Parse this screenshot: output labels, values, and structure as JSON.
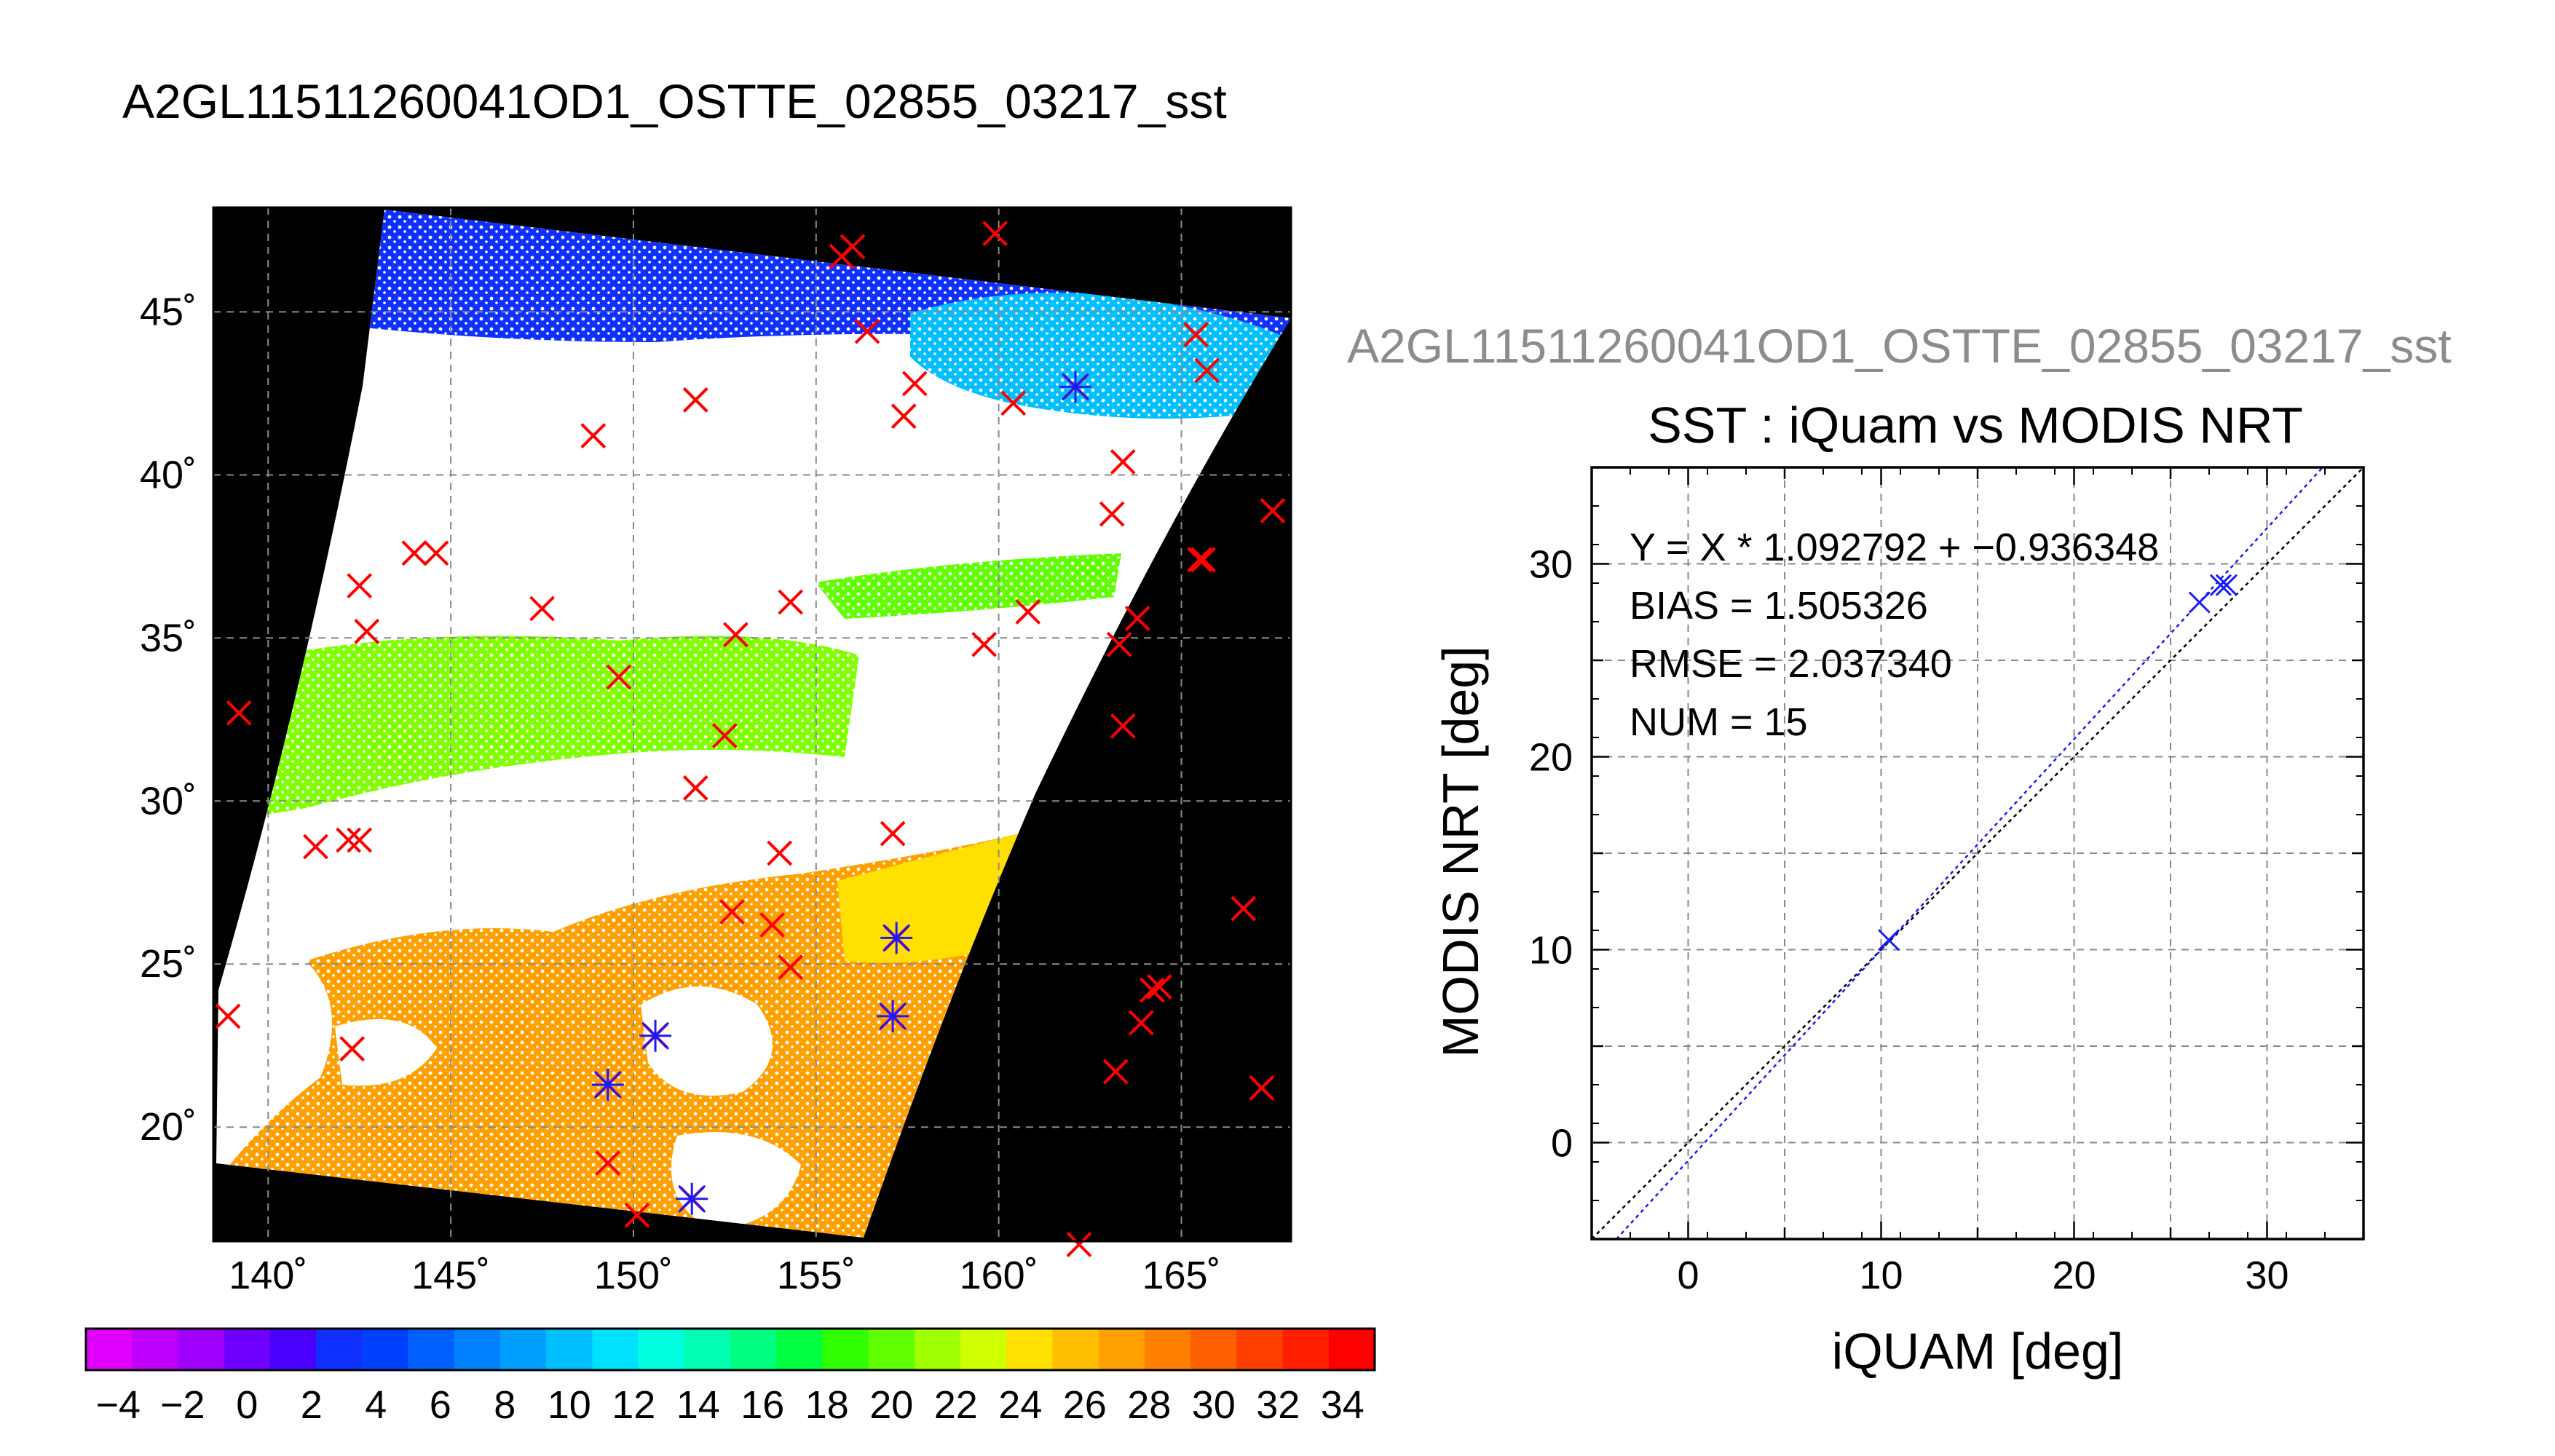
{
  "figure": {
    "title": "A2GL11511260041OD1_OSTTE_02855_03217_sst",
    "right_title": "A2GL11511260041OD1_OSTTE_02855_03217_sst"
  },
  "colors": {
    "background": "#ffffff",
    "map_background": "#000000",
    "cloud": "#ffffff",
    "match_marker": "#ff0000",
    "matched_marker": "#1a1aff",
    "fit_line": "#1a1aff",
    "identity_line": "#000000",
    "right_title": "#8c8c8c"
  },
  "chart_data": [
    {
      "type": "scatter",
      "name": "map",
      "xlim": [
        138.5,
        168
      ],
      "ylim": [
        16.5,
        48.2
      ],
      "x_ticks": [
        140,
        145,
        150,
        155,
        160,
        165
      ],
      "y_ticks": [
        20,
        25,
        30,
        35,
        40,
        45
      ],
      "x_tick_labels": [
        "140˚",
        "145˚",
        "150˚",
        "155˚",
        "160˚",
        "165˚"
      ],
      "y_tick_labels": [
        "20˚",
        "25˚",
        "30˚",
        "35˚",
        "40˚",
        "45˚"
      ],
      "grid": true,
      "matchups": [
        [
          156.0,
          47.0
        ],
        [
          155.7,
          46.7
        ],
        [
          159.9,
          47.4
        ],
        [
          156.4,
          44.4
        ],
        [
          157.7,
          42.8
        ],
        [
          157.4,
          41.8
        ],
        [
          160.4,
          42.2
        ],
        [
          162.1,
          42.7
        ],
        [
          165.4,
          44.3
        ],
        [
          165.7,
          43.2
        ],
        [
          151.7,
          42.3
        ],
        [
          148.9,
          41.2
        ],
        [
          163.4,
          40.4
        ],
        [
          167.5,
          38.9
        ],
        [
          163.1,
          38.8
        ],
        [
          165.6,
          37.4
        ],
        [
          165.5,
          37.4
        ],
        [
          144.0,
          37.6
        ],
        [
          144.6,
          37.6
        ],
        [
          142.5,
          36.6
        ],
        [
          147.5,
          35.9
        ],
        [
          154.3,
          36.1
        ],
        [
          142.7,
          35.2
        ],
        [
          152.8,
          35.1
        ],
        [
          160.8,
          35.8
        ],
        [
          163.8,
          35.6
        ],
        [
          159.6,
          34.8
        ],
        [
          163.3,
          34.8
        ],
        [
          149.6,
          33.8
        ],
        [
          139.2,
          32.7
        ],
        [
          163.4,
          32.3
        ],
        [
          152.5,
          32.0
        ],
        [
          151.7,
          30.4
        ],
        [
          157.1,
          29.0
        ],
        [
          141.3,
          28.6
        ],
        [
          142.2,
          28.8
        ],
        [
          142.5,
          28.8
        ],
        [
          154.0,
          28.4
        ],
        [
          152.7,
          26.6
        ],
        [
          153.8,
          26.2
        ],
        [
          157.2,
          25.8
        ],
        [
          154.3,
          24.9
        ],
        [
          166.7,
          26.7
        ],
        [
          164.4,
          24.3
        ],
        [
          164.2,
          24.2
        ],
        [
          138.9,
          23.4
        ],
        [
          157.1,
          23.4
        ],
        [
          163.9,
          23.2
        ],
        [
          142.3,
          22.4
        ],
        [
          150.6,
          22.8
        ],
        [
          149.3,
          21.3
        ],
        [
          163.2,
          21.7
        ],
        [
          167.2,
          21.2
        ],
        [
          149.3,
          18.9
        ],
        [
          150.1,
          17.3
        ],
        [
          151.6,
          17.8
        ],
        [
          162.2,
          16.4
        ]
      ],
      "matched": [
        [
          162.1,
          42.7
        ],
        [
          157.2,
          25.8
        ],
        [
          157.1,
          23.4
        ],
        [
          150.6,
          22.8
        ],
        [
          149.3,
          21.3
        ],
        [
          151.6,
          17.8
        ]
      ]
    },
    {
      "type": "heatmap",
      "name": "colorbar",
      "range": [
        -5,
        35
      ],
      "tick_labels": [
        "−4",
        "−2",
        "0",
        "2",
        "4",
        "6",
        "8",
        "10",
        "12",
        "14",
        "16",
        "18",
        "20",
        "22",
        "24",
        "26",
        "28",
        "30",
        "32",
        "34"
      ],
      "colors": [
        "#e000ff",
        "#c000ff",
        "#9f00ff",
        "#7000ff",
        "#4a00ff",
        "#1030ff",
        "#0040ff",
        "#0060ff",
        "#0080ff",
        "#009fff",
        "#00bfff",
        "#00e0ff",
        "#00ffe0",
        "#00ffb0",
        "#00ff80",
        "#00ff40",
        "#30ff00",
        "#60ff00",
        "#a0ff00",
        "#d0ff00",
        "#ffe000",
        "#ffbf00",
        "#ffa000",
        "#ff8000",
        "#ff6000",
        "#ff4000",
        "#ff2000",
        "#ff0000"
      ]
    },
    {
      "type": "scatter",
      "name": "scatter",
      "title": "SST : iQuam vs MODIS NRT",
      "xlabel": "iQUAM [deg]",
      "ylabel": "MODIS NRT [deg]",
      "xlim": [
        -5,
        35
      ],
      "ylim": [
        -5,
        35
      ],
      "x_ticks": [
        0,
        10,
        20,
        30
      ],
      "y_ticks": [
        0,
        10,
        20,
        30
      ],
      "grid": true,
      "points": [
        [
          10.4,
          10.5
        ],
        [
          26.5,
          28.0
        ],
        [
          27.6,
          28.9
        ],
        [
          27.9,
          28.9
        ]
      ],
      "fit": {
        "slope": 1.092792,
        "intercept": -0.936348
      },
      "stats": [
        "Y = X * 1.092792 + −0.936348",
        "BIAS = 1.505326",
        "RMSE = 2.037340",
        "NUM = 15"
      ]
    }
  ]
}
